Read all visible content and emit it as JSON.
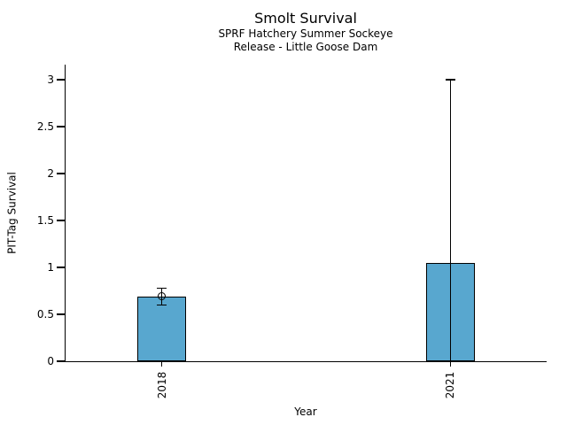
{
  "chart_data": {
    "type": "bar",
    "title": "Smolt Survival",
    "subtitle_lines": [
      "SPRF Hatchery Summer Sockeye",
      "Release - Little Goose Dam"
    ],
    "xlabel": "Year",
    "ylabel": "PIT-Tag Survival",
    "categories": [
      "2018",
      "2021"
    ],
    "values": [
      0.69,
      1.05
    ],
    "error_low": [
      0.6,
      0.0
    ],
    "error_high": [
      0.78,
      3.0
    ],
    "point_markers": [
      true,
      false
    ],
    "ytick_values": [
      0,
      0.5,
      1,
      1.5,
      2,
      2.5,
      3
    ],
    "ytick_labels": [
      "0",
      "0.5",
      "1",
      "1.5",
      "2",
      "2.5",
      "3"
    ],
    "ylim": [
      0,
      3.16
    ],
    "grid": false,
    "legend": "none",
    "bar_color": "#58a7cf",
    "bar_edge_color": "#000000",
    "error_color": "#000000",
    "text_color": "#000000",
    "background_color": "#ffffff"
  }
}
